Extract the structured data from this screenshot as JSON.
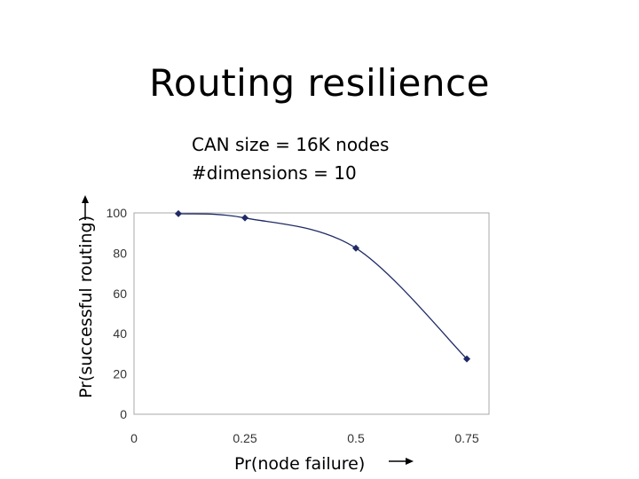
{
  "slide": {
    "title": "Routing resilience",
    "notes": [
      "CAN size = 16K nodes",
      "#dimensions = 10"
    ]
  },
  "chart_data": {
    "type": "line",
    "title": "",
    "xlabel": "Pr(node failure)",
    "ylabel": "Pr(successful routing)",
    "x": [
      0.1,
      0.25,
      0.5,
      0.75
    ],
    "series": [
      {
        "values": [
          99.6,
          97.5,
          82.5,
          27.5
        ]
      }
    ],
    "xlim": [
      0,
      0.8
    ],
    "ylim": [
      0,
      100
    ],
    "x_ticks": [
      "0",
      "0.25",
      "0.5",
      "0.75"
    ],
    "x_tick_values": [
      0,
      0.25,
      0.5,
      0.75
    ],
    "y_ticks": [
      "0",
      "20",
      "40",
      "60",
      "80",
      "100"
    ],
    "y_tick_values": [
      0,
      20,
      40,
      60,
      80,
      100
    ],
    "grid": false,
    "legend": "none",
    "colors": {
      "line": "#1f2a66",
      "marker": "#1f2a66",
      "frame": "#a8a8a8",
      "tick_label": "#333333",
      "arrow": "#000000"
    }
  }
}
